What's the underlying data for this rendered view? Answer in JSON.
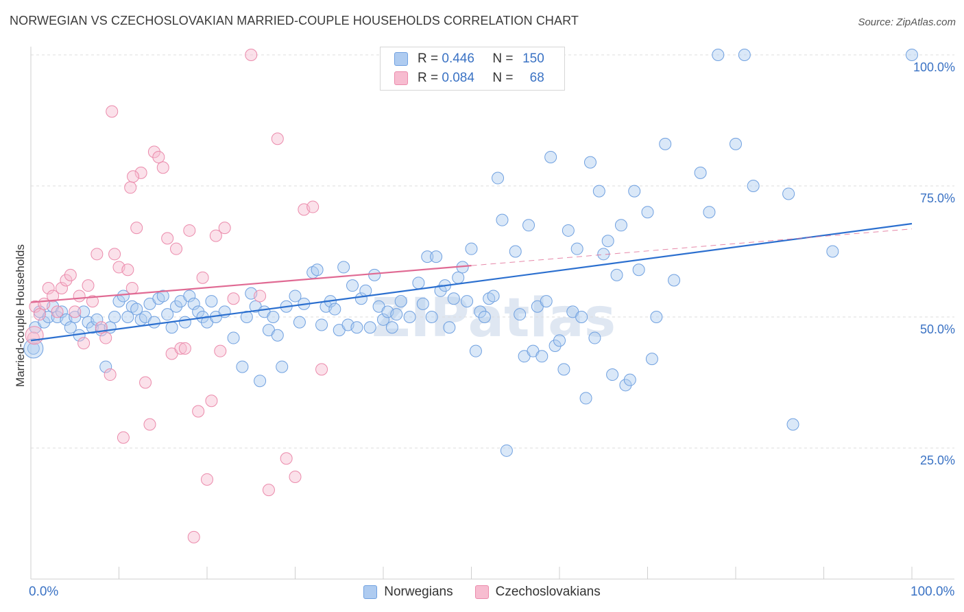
{
  "title": "NORWEGIAN VS CZECHOSLOVAKIAN MARRIED-COUPLE HOUSEHOLDS CORRELATION CHART",
  "source": "Source: ZipAtlas.com",
  "watermark": "ZIPatlas",
  "legend": {
    "rows": [
      {
        "r_label": "R =",
        "r_value": "0.446",
        "n_label": "N =",
        "n_value": "150",
        "color": "#aecbf0",
        "stroke": "#6fa0e0"
      },
      {
        "r_label": "R =",
        "r_value": "0.084",
        "n_label": "N =",
        "n_value": "68",
        "color": "#f7bcd0",
        "stroke": "#eb8aab"
      }
    ]
  },
  "bottom_legend": [
    {
      "label": "Norwegians",
      "color": "#aecbf0",
      "stroke": "#6fa0e0"
    },
    {
      "label": "Czechoslovakians",
      "color": "#f7bcd0",
      "stroke": "#eb8aab"
    }
  ],
  "chart_data": {
    "type": "scatter",
    "title": "NORWEGIAN VS CZECHOSLOVAKIAN MARRIED-COUPLE HOUSEHOLDS CORRELATION CHART",
    "xlabel": "",
    "ylabel": "Married-couple Households",
    "xlim": [
      0,
      100
    ],
    "ylim": [
      0,
      100
    ],
    "x_tick_labels": [
      "0.0%",
      "100.0%"
    ],
    "y_tick_labels": [
      "25.0%",
      "50.0%",
      "75.0%",
      "100.0%"
    ],
    "y_ticks": [
      25,
      50,
      75,
      100
    ],
    "grid": true,
    "series": [
      {
        "name": "Norwegians",
        "color": "#6fa0e0",
        "fill": "#aecbf0",
        "line_color": "#2b6fcf",
        "trend": {
          "x": [
            0,
            100
          ],
          "y": [
            45.5,
            67.8
          ]
        },
        "points": [
          [
            0.3,
            44
          ],
          [
            0.5,
            48
          ],
          [
            1,
            51
          ],
          [
            1.5,
            49
          ],
          [
            2,
            50
          ],
          [
            2.5,
            52
          ],
          [
            3,
            50
          ],
          [
            3.5,
            51
          ],
          [
            4,
            49.5
          ],
          [
            4.5,
            48
          ],
          [
            5,
            50
          ],
          [
            5.5,
            46.5
          ],
          [
            6,
            51
          ],
          [
            6.5,
            49
          ],
          [
            7,
            48
          ],
          [
            7.5,
            49.5
          ],
          [
            8,
            47.5
          ],
          [
            8.5,
            40.5
          ],
          [
            9,
            48
          ],
          [
            9.5,
            50
          ],
          [
            10,
            53
          ],
          [
            10.5,
            54
          ],
          [
            11,
            50
          ],
          [
            11.5,
            52
          ],
          [
            12,
            51.5
          ],
          [
            12.5,
            49.5
          ],
          [
            13,
            50
          ],
          [
            13.5,
            52.5
          ],
          [
            14,
            49
          ],
          [
            14.5,
            53.5
          ],
          [
            15,
            54
          ],
          [
            15.5,
            50.5
          ],
          [
            16,
            48
          ],
          [
            16.5,
            52
          ],
          [
            17,
            53
          ],
          [
            17.5,
            49
          ],
          [
            18,
            54
          ],
          [
            18.5,
            52.5
          ],
          [
            19,
            51
          ],
          [
            19.5,
            50
          ],
          [
            20,
            49
          ],
          [
            20.5,
            53
          ],
          [
            21,
            50
          ],
          [
            22,
            51
          ],
          [
            23,
            46
          ],
          [
            24,
            40.5
          ],
          [
            24.5,
            50
          ],
          [
            25,
            54.5
          ],
          [
            25.5,
            52
          ],
          [
            26,
            37.8
          ],
          [
            26.5,
            51
          ],
          [
            27,
            47.5
          ],
          [
            27.5,
            50
          ],
          [
            28,
            46.5
          ],
          [
            28.5,
            40.5
          ],
          [
            29,
            52
          ],
          [
            30,
            54
          ],
          [
            30.5,
            49
          ],
          [
            31,
            52.5
          ],
          [
            32,
            58.5
          ],
          [
            32.5,
            59
          ],
          [
            33,
            48.5
          ],
          [
            33.5,
            52
          ],
          [
            34,
            53
          ],
          [
            34.5,
            51.5
          ],
          [
            35,
            47.5
          ],
          [
            35.5,
            59.5
          ],
          [
            36,
            48.5
          ],
          [
            36.5,
            56
          ],
          [
            37,
            48
          ],
          [
            37.5,
            53.5
          ],
          [
            38,
            55
          ],
          [
            38.5,
            48
          ],
          [
            39,
            58
          ],
          [
            39.5,
            52
          ],
          [
            40,
            49.5
          ],
          [
            40.5,
            51
          ],
          [
            41,
            48
          ],
          [
            41.5,
            50.5
          ],
          [
            42,
            53
          ],
          [
            43,
            50
          ],
          [
            44,
            56.5
          ],
          [
            44.5,
            52.5
          ],
          [
            45,
            61.5
          ],
          [
            45.5,
            50
          ],
          [
            46,
            61.5
          ],
          [
            46.5,
            55
          ],
          [
            47,
            56
          ],
          [
            47.5,
            48
          ],
          [
            48,
            53.5
          ],
          [
            48.5,
            57.5
          ],
          [
            49,
            59.5
          ],
          [
            49.5,
            53
          ],
          [
            50,
            63
          ],
          [
            50.5,
            43.5
          ],
          [
            51,
            51
          ],
          [
            51.5,
            50
          ],
          [
            52,
            53.5
          ],
          [
            52.5,
            54
          ],
          [
            53,
            76.5
          ],
          [
            53.5,
            68.5
          ],
          [
            54,
            24.5
          ],
          [
            55,
            62.5
          ],
          [
            55.5,
            50.5
          ],
          [
            56,
            42.5
          ],
          [
            56.5,
            67.5
          ],
          [
            57,
            43.5
          ],
          [
            57.5,
            52
          ],
          [
            58,
            42.5
          ],
          [
            58.5,
            53
          ],
          [
            59,
            80.5
          ],
          [
            59.5,
            44.5
          ],
          [
            60,
            45.5
          ],
          [
            60.5,
            40
          ],
          [
            61,
            66.5
          ],
          [
            61.5,
            51
          ],
          [
            62,
            63
          ],
          [
            62.5,
            50
          ],
          [
            63,
            34.5
          ],
          [
            63.5,
            79.5
          ],
          [
            64,
            46
          ],
          [
            64.5,
            74
          ],
          [
            65,
            62
          ],
          [
            65.5,
            64.5
          ],
          [
            66,
            39
          ],
          [
            66.5,
            58
          ],
          [
            67,
            67.5
          ],
          [
            67.5,
            37
          ],
          [
            68,
            38
          ],
          [
            68.5,
            74
          ],
          [
            69,
            59
          ],
          [
            70,
            70
          ],
          [
            70.5,
            42
          ],
          [
            71,
            50
          ],
          [
            72,
            83
          ],
          [
            73,
            57
          ],
          [
            76,
            77.5
          ],
          [
            77,
            70
          ],
          [
            78,
            100
          ],
          [
            80,
            83
          ],
          [
            81,
            100
          ],
          [
            82,
            75
          ],
          [
            86,
            73.5
          ],
          [
            86.5,
            29.5
          ],
          [
            91,
            62.5
          ],
          [
            100,
            100
          ]
        ]
      },
      {
        "name": "Czechoslovakians",
        "color": "#eb8aab",
        "fill": "#f7bcd0",
        "line_color": "#e06a93",
        "trend": {
          "x": [
            0,
            50
          ],
          "y": [
            52.8,
            59.8
          ]
        },
        "trend_dashed": {
          "x": [
            50,
            100
          ],
          "y": [
            59.8,
            66.8
          ]
        },
        "points": [
          [
            0.3,
            46
          ],
          [
            0.5,
            52
          ],
          [
            1,
            50.5
          ],
          [
            1.5,
            52.5
          ],
          [
            2,
            55.5
          ],
          [
            2.5,
            54
          ],
          [
            3,
            51
          ],
          [
            3.5,
            55.5
          ],
          [
            4,
            57
          ],
          [
            4.5,
            58
          ],
          [
            5,
            51
          ],
          [
            5.5,
            54
          ],
          [
            6,
            45
          ],
          [
            6.5,
            56
          ],
          [
            7,
            53
          ],
          [
            7.5,
            62
          ],
          [
            8,
            48
          ],
          [
            8.5,
            46
          ],
          [
            9,
            39
          ],
          [
            9.5,
            62
          ],
          [
            10,
            59.5
          ],
          [
            10.5,
            27
          ],
          [
            11,
            59
          ],
          [
            11.5,
            55.5
          ],
          [
            12,
            67
          ],
          [
            12.5,
            77.5
          ],
          [
            13,
            37.5
          ],
          [
            13.5,
            29.5
          ],
          [
            14,
            81.5
          ],
          [
            14.5,
            80.5
          ],
          [
            15,
            78.5
          ],
          [
            15.5,
            65
          ],
          [
            16,
            43
          ],
          [
            16.5,
            63
          ],
          [
            17,
            44
          ],
          [
            17.5,
            44
          ],
          [
            18,
            66.5
          ],
          [
            18.5,
            8
          ],
          [
            19,
            32
          ],
          [
            19.5,
            57.5
          ],
          [
            20,
            19
          ],
          [
            20.5,
            34
          ],
          [
            21,
            65.5
          ],
          [
            21.5,
            43.5
          ],
          [
            22,
            67
          ],
          [
            23,
            53.5
          ],
          [
            25,
            100
          ],
          [
            26,
            54
          ],
          [
            27,
            17
          ],
          [
            28,
            84
          ],
          [
            29,
            23
          ],
          [
            30,
            19.5
          ],
          [
            31,
            70.5
          ],
          [
            32,
            71
          ],
          [
            33,
            40
          ],
          [
            9.2,
            89.2
          ],
          [
            11.3,
            74.7
          ],
          [
            11.6,
            76.8
          ]
        ]
      }
    ]
  }
}
